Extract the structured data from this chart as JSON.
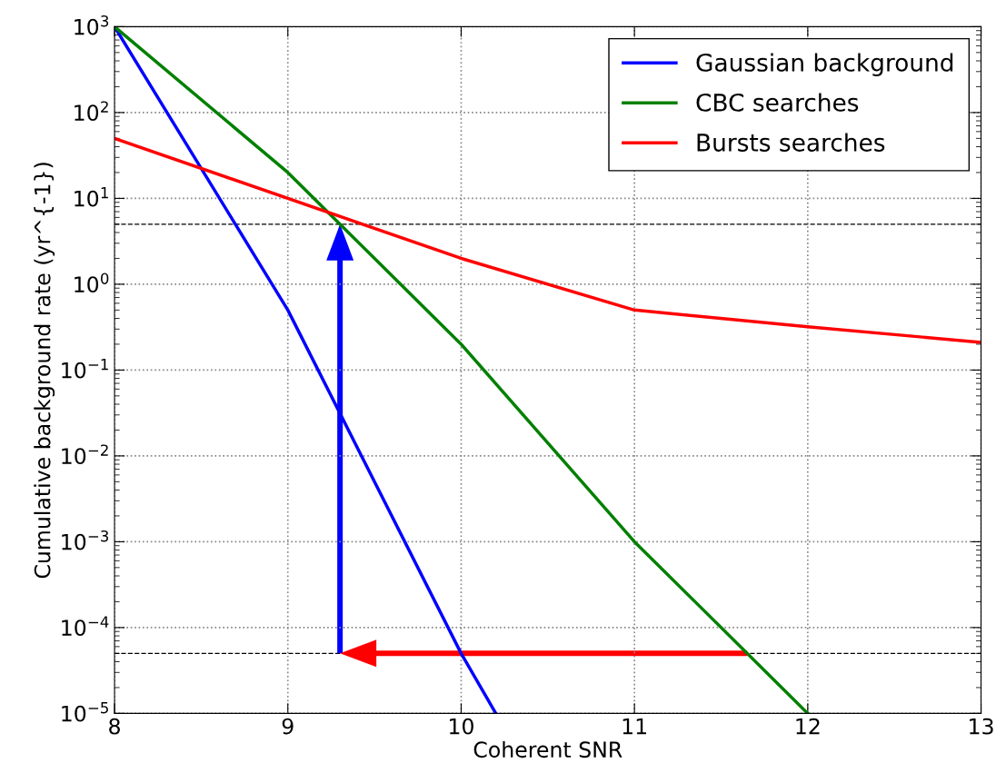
{
  "chart_data": {
    "type": "line",
    "xlabel": "Coherent SNR",
    "ylabel": "Cumulative background rate (yr^{-1})",
    "log": "y",
    "xlim": [
      8,
      13
    ],
    "xticks": [
      8,
      9,
      10,
      11,
      12,
      13
    ],
    "ylim": [
      1e-05,
      1000
    ],
    "yticks": [
      {
        "value": 1e-05,
        "label": "10$^{−5}$"
      },
      {
        "value": 0.0001,
        "label": "10$^{−4}$"
      },
      {
        "value": 0.001,
        "label": "10$^{−3}$"
      },
      {
        "value": 0.01,
        "label": "10$^{−2}$"
      },
      {
        "value": 0.1,
        "label": "10$^{−1}$"
      },
      {
        "value": 1,
        "label": "10$^{0}$"
      },
      {
        "value": 10,
        "label": "10$^{1}$"
      },
      {
        "value": 100,
        "label": "10$^{2}$"
      },
      {
        "value": 1000,
        "label": "10$^{3}$"
      }
    ],
    "grid": true,
    "legend": "top right",
    "line_style": "solid",
    "series": [
      {
        "name": "Gaussian background",
        "color": "#0000ff",
        "x": [
          8,
          9,
          10,
          10.2
        ],
        "values": [
          1000,
          0.5,
          5e-05,
          1e-05
        ]
      },
      {
        "name": "CBC searches",
        "color": "#008000",
        "x": [
          8,
          9,
          10,
          11,
          12
        ],
        "values": [
          1000,
          20,
          0.2,
          0.001,
          1e-05
        ]
      },
      {
        "name": "Bursts searches",
        "color": "#ff0000",
        "x": [
          8,
          10,
          11,
          12,
          13
        ],
        "values": [
          50,
          2,
          0.5,
          0.32,
          0.21
        ]
      }
    ],
    "ref_lines": [
      {
        "axis": "y",
        "value": 5,
        "color": "#000000",
        "line_style": "dashed"
      },
      {
        "axis": "y",
        "value": 5e-05,
        "color": "#000000",
        "line_style": "dashed"
      }
    ]
  }
}
